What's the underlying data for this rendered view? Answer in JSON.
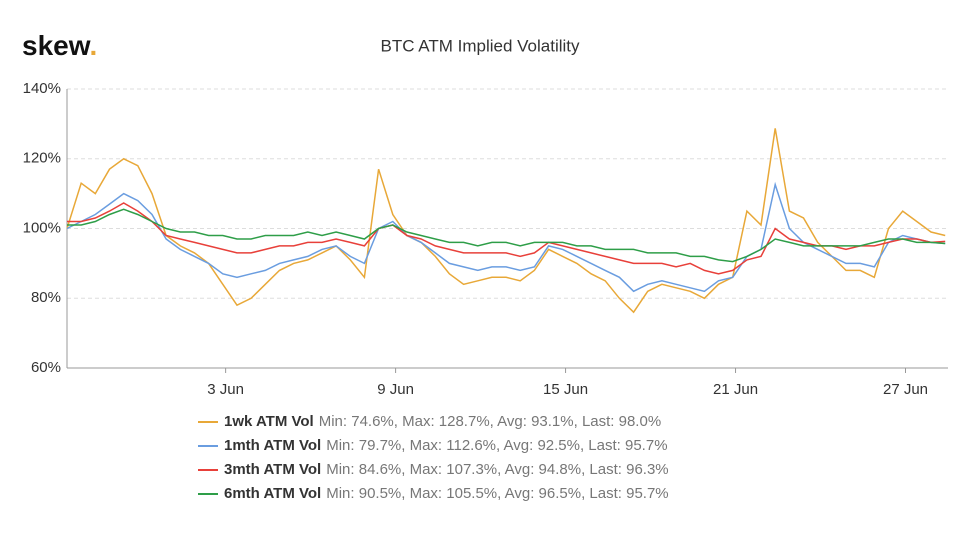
{
  "chart_data": {
    "type": "line",
    "logo": "skew",
    "logo_dot": ".",
    "title": "BTC ATM Implied Volatility",
    "x": [
      -2.6,
      -2.1,
      -1.6,
      -1.1,
      -0.6,
      -0.1,
      0.4,
      0.9,
      1.4,
      1.9,
      2.4,
      2.9,
      3.4,
      3.9,
      4.4,
      4.9,
      5.4,
      5.9,
      6.4,
      6.9,
      7.4,
      7.9,
      8.4,
      8.9,
      9.4,
      9.9,
      10.4,
      10.9,
      11.4,
      11.9,
      12.4,
      12.9,
      13.4,
      13.9,
      14.4,
      14.9,
      15.4,
      15.9,
      16.4,
      16.9,
      17.4,
      17.9,
      18.4,
      18.9,
      19.4,
      19.9,
      20.4,
      20.9,
      21.4,
      21.9,
      22.4,
      22.9,
      23.4,
      23.9,
      24.4,
      24.9,
      25.4,
      25.9,
      26.4,
      26.9,
      27.4,
      27.9,
      28.4
    ],
    "series": [
      {
        "name": "1wk ATM Vol",
        "stats": "Min: 74.6%, Max: 128.7%, Avg: 93.1%, Last: 98.0%",
        "color": "#e8a838",
        "values": [
          100,
          113,
          110,
          117,
          120,
          118,
          110,
          98,
          95,
          93,
          90,
          84,
          78,
          80,
          84,
          88,
          90,
          91,
          93,
          95,
          91,
          86,
          117,
          104,
          98,
          96,
          92,
          87,
          84,
          85,
          86,
          86,
          85,
          88,
          94,
          92,
          90,
          87,
          85,
          80,
          76,
          82,
          84,
          83,
          82,
          80,
          84,
          86,
          105,
          101,
          128.7,
          105,
          103,
          96,
          92,
          88,
          88,
          86,
          100,
          105,
          102,
          99,
          98
        ]
      },
      {
        "name": "1mth ATM Vol",
        "stats": "Min: 79.7%, Max: 112.6%, Avg: 92.5%, Last: 95.7%",
        "color": "#6a9de0",
        "values": [
          100,
          102,
          104,
          107,
          110,
          108,
          104,
          97,
          94,
          92,
          90,
          87,
          86,
          87,
          88,
          90,
          91,
          92,
          94,
          95,
          92,
          90,
          100,
          102,
          98,
          96,
          93,
          90,
          89,
          88,
          89,
          89,
          88,
          89,
          95,
          94,
          92,
          90,
          88,
          86,
          82,
          84,
          85,
          84,
          83,
          82,
          85,
          86,
          92,
          94,
          112.6,
          100,
          96,
          94,
          92,
          90,
          90,
          89,
          96,
          98,
          97,
          96,
          95.7
        ]
      },
      {
        "name": "3mth ATM Vol",
        "stats": "Min: 84.6%, Max: 107.3%, Avg: 94.8%, Last: 96.3%",
        "color": "#e8403a",
        "values": [
          102,
          102,
          103,
          105,
          107.3,
          105,
          102,
          98,
          97,
          96,
          95,
          94,
          93,
          93,
          94,
          95,
          95,
          96,
          96,
          97,
          96,
          95,
          100,
          101,
          98,
          97,
          95,
          94,
          93,
          93,
          93,
          93,
          92,
          93,
          96,
          95,
          94,
          93,
          92,
          91,
          90,
          90,
          90,
          89,
          90,
          88,
          87,
          88,
          91,
          92,
          100,
          97,
          96,
          95,
          95,
          94,
          95,
          95,
          96,
          97,
          97,
          96,
          96.3
        ]
      },
      {
        "name": "6mth ATM Vol",
        "stats": "Min: 90.5%, Max: 105.5%, Avg: 96.5%, Last: 95.7%",
        "color": "#2e9e48",
        "values": [
          101,
          101,
          102,
          104,
          105.5,
          104,
          102,
          100,
          99,
          99,
          98,
          98,
          97,
          97,
          98,
          98,
          98,
          99,
          98,
          99,
          98,
          97,
          100,
          101,
          99,
          98,
          97,
          96,
          96,
          95,
          96,
          96,
          95,
          96,
          96,
          96,
          95,
          95,
          94,
          94,
          94,
          93,
          93,
          93,
          92,
          92,
          91,
          90.5,
          92,
          94,
          97,
          96,
          95,
          95,
          95,
          95,
          95,
          96,
          97,
          97,
          96,
          96,
          95.7
        ]
      }
    ],
    "xlim": [
      -2.6,
      28.5
    ],
    "xticks": [
      {
        "value": 3,
        "label": "3 Jun"
      },
      {
        "value": 9,
        "label": "9 Jun"
      },
      {
        "value": 15,
        "label": "15 Jun"
      },
      {
        "value": 21,
        "label": "21 Jun"
      },
      {
        "value": 27,
        "label": "27 Jun"
      }
    ],
    "ylim": [
      60,
      140
    ],
    "yticks": [
      {
        "value": 60,
        "label": "60%"
      },
      {
        "value": 80,
        "label": "80%"
      },
      {
        "value": 100,
        "label": "100%"
      },
      {
        "value": 120,
        "label": "120%"
      },
      {
        "value": 140,
        "label": "140%"
      }
    ],
    "grid": true
  }
}
